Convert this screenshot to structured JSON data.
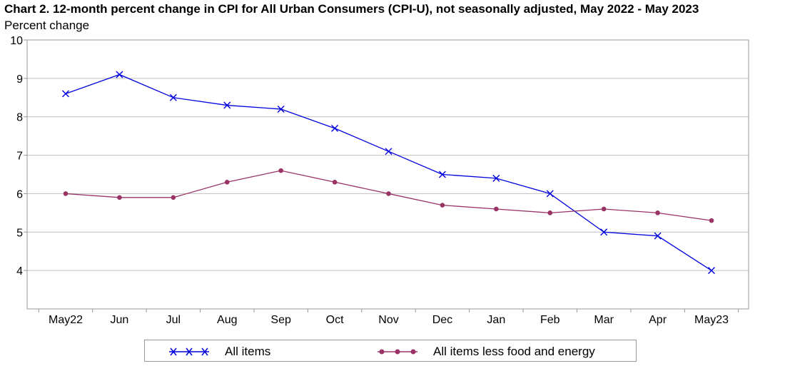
{
  "chart_data": {
    "type": "line",
    "title": "Chart 2. 12-month percent change in CPI for All Urban Consumers (CPI-U), not seasonally adjusted, May 2022 - May 2023",
    "ylabel": "Percent change",
    "xlabel": "",
    "categories": [
      "May22",
      "Jun",
      "Jul",
      "Aug",
      "Sep",
      "Oct",
      "Nov",
      "Dec",
      "Jan",
      "Feb",
      "Mar",
      "Apr",
      "May23"
    ],
    "ylim": [
      3,
      10
    ],
    "yticks": [
      4,
      5,
      6,
      7,
      8,
      9,
      10
    ],
    "grid": true,
    "legend_position": "bottom",
    "series": [
      {
        "name": "All items",
        "color": "#0000dd",
        "marker": "x",
        "values": [
          8.6,
          9.1,
          8.5,
          8.3,
          8.2,
          7.7,
          7.1,
          6.5,
          6.4,
          6.0,
          5.0,
          4.9,
          4.0
        ]
      },
      {
        "name": "All items less food and energy",
        "color": "#993366",
        "marker": "circle",
        "values": [
          6.0,
          5.9,
          5.9,
          6.3,
          6.6,
          6.3,
          6.0,
          5.7,
          5.6,
          5.5,
          5.6,
          5.5,
          5.3
        ]
      }
    ]
  }
}
